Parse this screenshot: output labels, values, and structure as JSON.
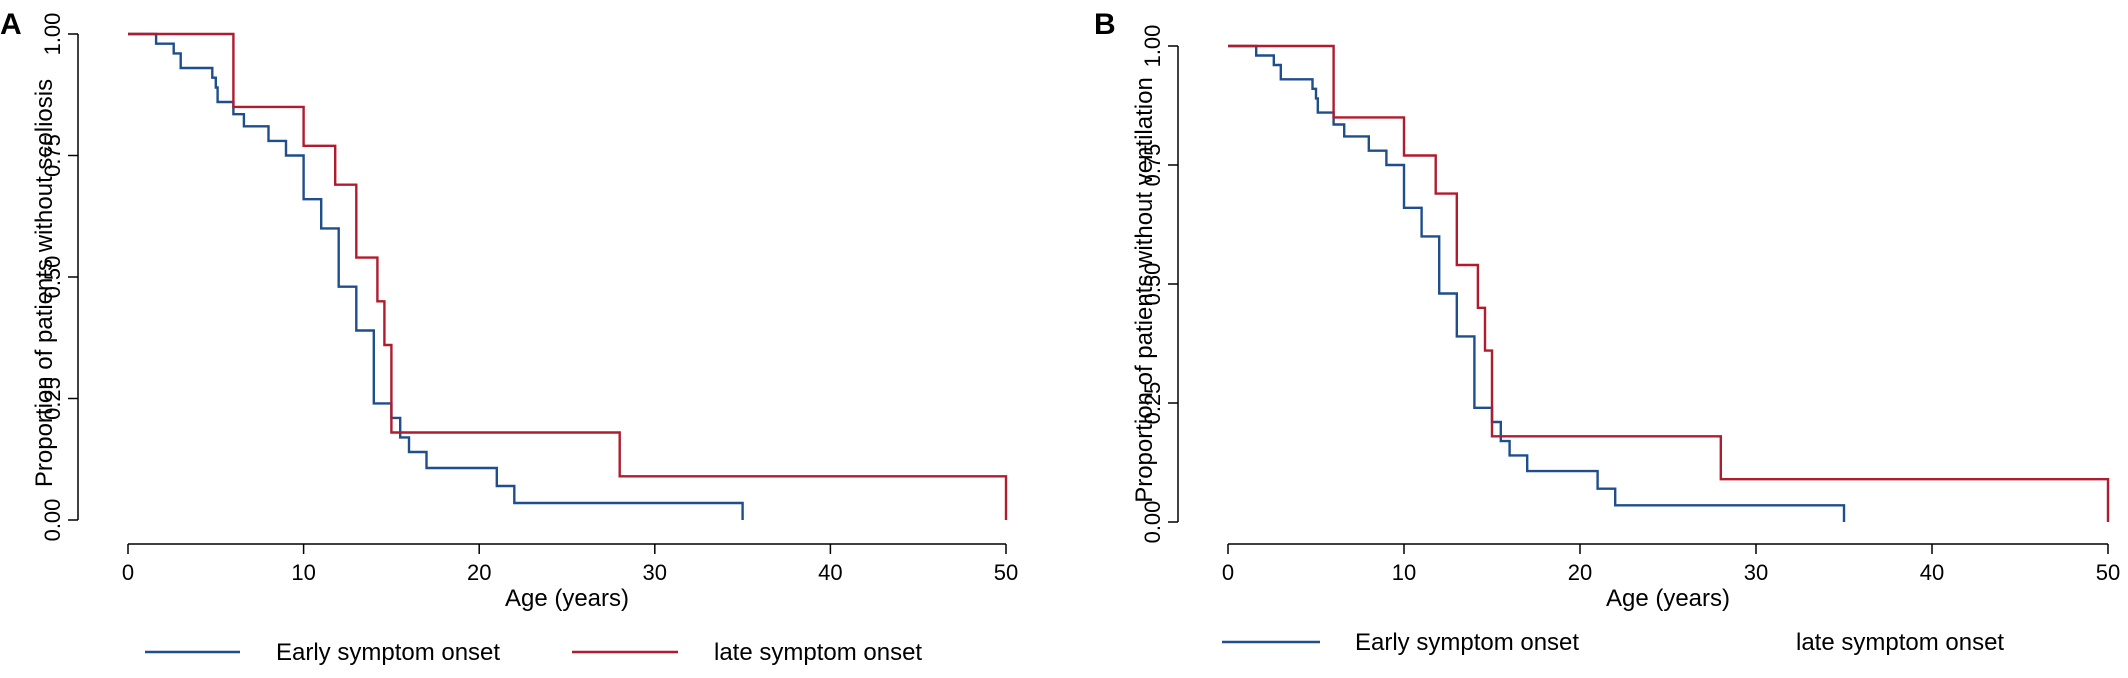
{
  "colors": {
    "early": "#1f4e8c",
    "late": "#b01c2e"
  },
  "chart_data": [
    {
      "type": "line",
      "step": true,
      "panel_label": "A",
      "title": "",
      "xlabel": "Age (years)",
      "ylabel": "Proportion of patients without scoliosis",
      "xlim": [
        0,
        50
      ],
      "ylim": [
        0,
        1
      ],
      "x_ticks": [
        0,
        10,
        20,
        30,
        40,
        50
      ],
      "y_ticks": [
        "0.00",
        "0.25",
        "0.50",
        "0.75",
        "1.00"
      ],
      "legend_position": "bottom",
      "series": [
        {
          "name": "Early symptom onset",
          "color": "#1f4e8c",
          "points": [
            [
              0,
              1.0
            ],
            [
              1.6,
              1.0
            ],
            [
              1.6,
              0.98
            ],
            [
              2.6,
              0.98
            ],
            [
              2.6,
              0.96
            ],
            [
              3,
              0.96
            ],
            [
              3,
              0.93
            ],
            [
              4.8,
              0.93
            ],
            [
              4.8,
              0.91
            ],
            [
              5,
              0.91
            ],
            [
              5,
              0.89
            ],
            [
              5.1,
              0.89
            ],
            [
              5.1,
              0.86
            ],
            [
              6,
              0.86
            ],
            [
              6,
              0.835
            ],
            [
              6.6,
              0.835
            ],
            [
              6.6,
              0.81
            ],
            [
              8,
              0.81
            ],
            [
              8,
              0.78
            ],
            [
              9,
              0.78
            ],
            [
              9,
              0.75
            ],
            [
              10,
              0.75
            ],
            [
              10,
              0.66
            ],
            [
              11,
              0.66
            ],
            [
              11,
              0.6
            ],
            [
              12,
              0.6
            ],
            [
              12,
              0.48
            ],
            [
              13,
              0.48
            ],
            [
              13,
              0.39
            ],
            [
              14,
              0.39
            ],
            [
              14,
              0.24
            ],
            [
              15,
              0.24
            ],
            [
              15,
              0.21
            ],
            [
              15.5,
              0.21
            ],
            [
              15.5,
              0.17
            ],
            [
              16,
              0.17
            ],
            [
              16,
              0.14
            ],
            [
              17,
              0.14
            ],
            [
              17,
              0.107
            ],
            [
              21,
              0.107
            ],
            [
              21,
              0.07
            ],
            [
              22,
              0.07
            ],
            [
              22,
              0.035
            ],
            [
              35,
              0.035
            ],
            [
              35,
              0.0
            ]
          ]
        },
        {
          "name": "late symptom onset",
          "color": "#b01c2e",
          "points": [
            [
              0,
              1.0
            ],
            [
              6,
              1.0
            ],
            [
              6,
              0.85
            ],
            [
              10,
              0.85
            ],
            [
              10,
              0.77
            ],
            [
              11.8,
              0.77
            ],
            [
              11.8,
              0.69
            ],
            [
              13,
              0.69
            ],
            [
              13,
              0.54
            ],
            [
              14.2,
              0.54
            ],
            [
              14.2,
              0.45
            ],
            [
              14.6,
              0.45
            ],
            [
              14.6,
              0.36
            ],
            [
              15,
              0.36
            ],
            [
              15,
              0.18
            ],
            [
              28,
              0.18
            ],
            [
              28,
              0.09
            ],
            [
              50,
              0.09
            ],
            [
              50,
              0.0
            ]
          ]
        }
      ]
    },
    {
      "type": "line",
      "step": true,
      "panel_label": "B",
      "title": "",
      "xlabel": "Age (years)",
      "ylabel": "Proportion of patients without ventilation",
      "xlim": [
        0,
        50
      ],
      "ylim": [
        0,
        1
      ],
      "x_ticks": [
        0,
        10,
        20,
        30,
        40,
        50
      ],
      "y_ticks": [
        "0.00",
        "0.25",
        "0.50",
        "0.75",
        "1.00"
      ],
      "legend_position": "bottom",
      "series": [
        {
          "name": "Early symptom onset",
          "color": "#1f4e8c",
          "points": [
            [
              0,
              1.0
            ],
            [
              1.6,
              1.0
            ],
            [
              1.6,
              0.98
            ],
            [
              2.6,
              0.98
            ],
            [
              2.6,
              0.96
            ],
            [
              3,
              0.96
            ],
            [
              3,
              0.93
            ],
            [
              4.8,
              0.93
            ],
            [
              4.8,
              0.91
            ],
            [
              5,
              0.91
            ],
            [
              5,
              0.89
            ],
            [
              5.1,
              0.89
            ],
            [
              5.1,
              0.86
            ],
            [
              6,
              0.86
            ],
            [
              6,
              0.835
            ],
            [
              6.6,
              0.835
            ],
            [
              6.6,
              0.81
            ],
            [
              8,
              0.81
            ],
            [
              8,
              0.78
            ],
            [
              9,
              0.78
            ],
            [
              9,
              0.75
            ],
            [
              10,
              0.75
            ],
            [
              10,
              0.66
            ],
            [
              11,
              0.66
            ],
            [
              11,
              0.6
            ],
            [
              12,
              0.6
            ],
            [
              12,
              0.48
            ],
            [
              13,
              0.48
            ],
            [
              13,
              0.39
            ],
            [
              14,
              0.39
            ],
            [
              14,
              0.24
            ],
            [
              15,
              0.24
            ],
            [
              15,
              0.21
            ],
            [
              15.5,
              0.21
            ],
            [
              15.5,
              0.17
            ],
            [
              16,
              0.17
            ],
            [
              16,
              0.14
            ],
            [
              17,
              0.14
            ],
            [
              17,
              0.107
            ],
            [
              21,
              0.107
            ],
            [
              21,
              0.07
            ],
            [
              22,
              0.07
            ],
            [
              22,
              0.035
            ],
            [
              35,
              0.035
            ],
            [
              35,
              0.0
            ]
          ]
        },
        {
          "name": "late symptom onset",
          "color": "#b01c2e",
          "points": [
            [
              0,
              1.0
            ],
            [
              6,
              1.0
            ],
            [
              6,
              0.85
            ],
            [
              10,
              0.85
            ],
            [
              10,
              0.77
            ],
            [
              11.8,
              0.77
            ],
            [
              11.8,
              0.69
            ],
            [
              13,
              0.69
            ],
            [
              13,
              0.54
            ],
            [
              14.2,
              0.54
            ],
            [
              14.2,
              0.45
            ],
            [
              14.6,
              0.45
            ],
            [
              14.6,
              0.36
            ],
            [
              15,
              0.36
            ],
            [
              15,
              0.18
            ],
            [
              28,
              0.18
            ],
            [
              28,
              0.09
            ],
            [
              50,
              0.09
            ],
            [
              50,
              0.0
            ]
          ]
        }
      ]
    }
  ]
}
